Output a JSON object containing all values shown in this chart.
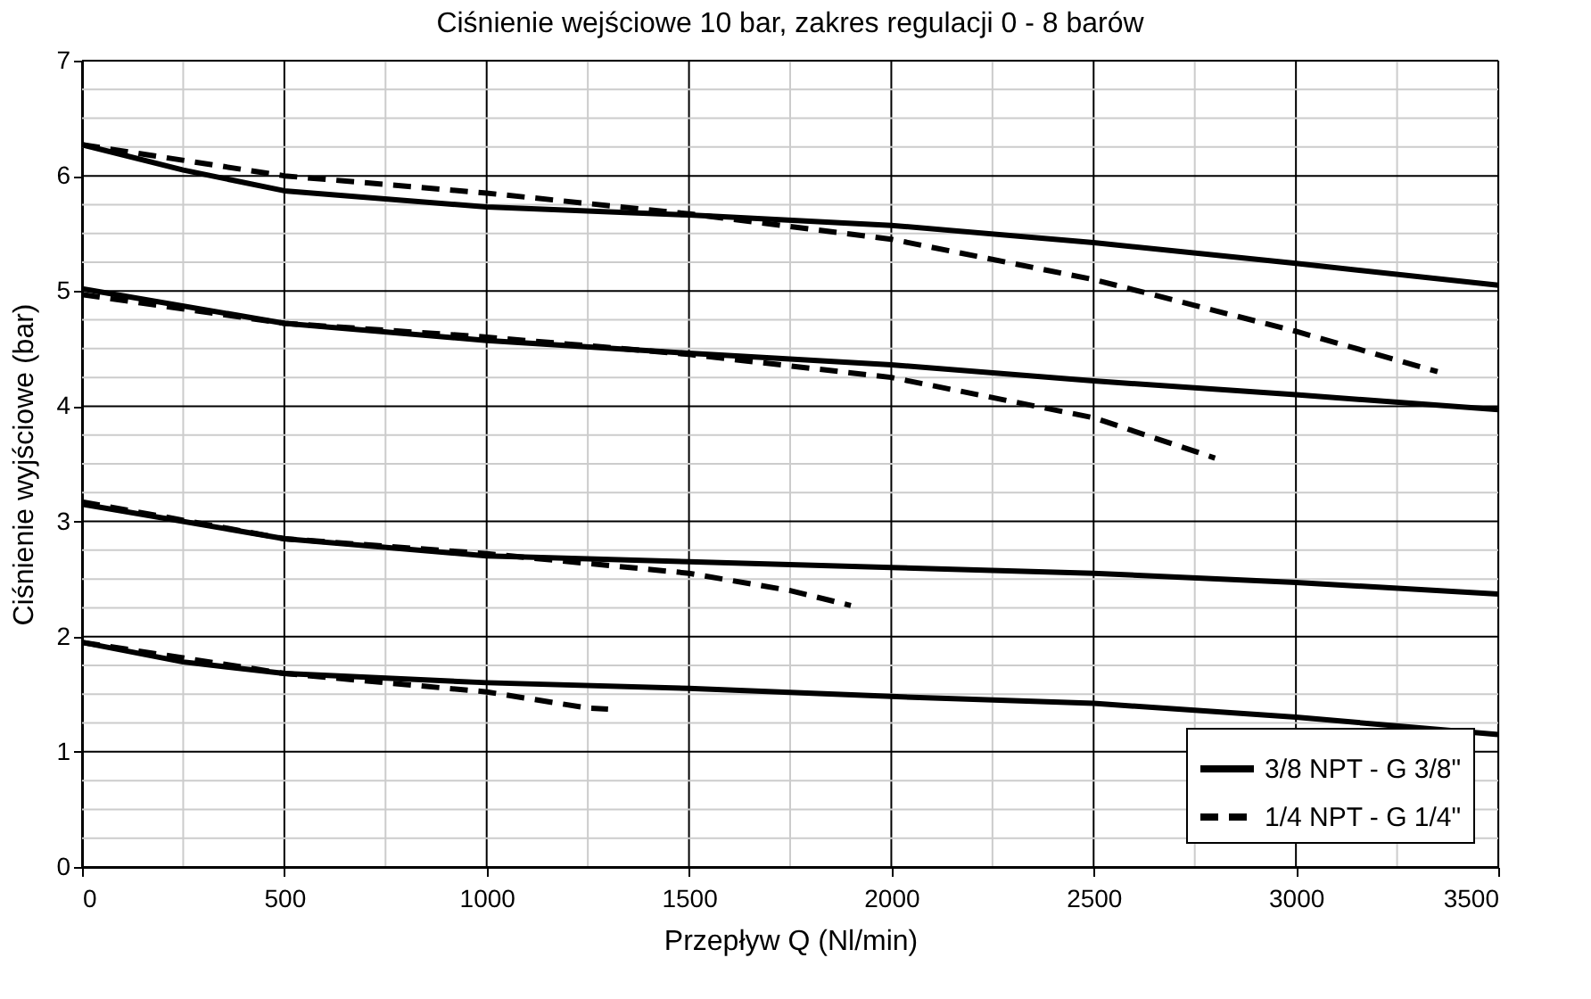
{
  "chart_data": {
    "type": "line",
    "title": "Ciśnienie wejściowe 10 bar, zakres regulacji 0 - 8 barów",
    "xlabel": "Przepływ Q (Nl/min)",
    "ylabel": "Ciśnienie wyjściowe (bar)",
    "xlim": [
      0,
      3500
    ],
    "ylim": [
      0,
      7
    ],
    "xticks": [
      0,
      {
        "value": 250,
        "label": null
      },
      500,
      {
        "value": 750,
        "label": null
      },
      1000,
      {
        "value": 1250,
        "label": null
      },
      1500,
      {
        "value": 1750,
        "label": null
      },
      2000,
      {
        "value": 2250,
        "label": null
      },
      2500,
      {
        "value": 2750,
        "label": null
      },
      3000,
      {
        "value": 3250,
        "label": null
      },
      3500
    ],
    "yticks": [
      0,
      {
        "value": 0.25,
        "label": null
      },
      {
        "value": 0.5,
        "label": null
      },
      {
        "value": 0.75,
        "label": null
      },
      1,
      {
        "value": 1.25,
        "label": null
      },
      {
        "value": 1.5,
        "label": null
      },
      {
        "value": 1.75,
        "label": null
      },
      2,
      {
        "value": 2.25,
        "label": null
      },
      {
        "value": 2.5,
        "label": null
      },
      {
        "value": 2.75,
        "label": null
      },
      3,
      {
        "value": 3.25,
        "label": null
      },
      {
        "value": 3.5,
        "label": null
      },
      {
        "value": 3.75,
        "label": null
      },
      4,
      {
        "value": 4.25,
        "label": null
      },
      {
        "value": 4.5,
        "label": null
      },
      {
        "value": 4.75,
        "label": null
      },
      5,
      {
        "value": 5.25,
        "label": null
      },
      {
        "value": 5.5,
        "label": null
      },
      {
        "value": 5.75,
        "label": null
      },
      6,
      {
        "value": 6.25,
        "label": null
      },
      {
        "value": 6.5,
        "label": null
      },
      {
        "value": 6.75,
        "label": null
      },
      7
    ],
    "grid": true,
    "legend": "bottom right",
    "marker": "none",
    "series": [
      {
        "name": "3/8 NPT - G 3/8\"",
        "color": "#000000",
        "line_style": "solid",
        "x": [
          0,
          250,
          500,
          1000,
          1500,
          2000,
          2500,
          3000,
          3500
        ],
        "values": [
          6.27,
          6.05,
          5.87,
          5.73,
          5.66,
          5.57,
          5.42,
          5.24,
          5.05
        ]
      },
      {
        "name": "1/4 NPT - G 1/4\"",
        "color": "#000000",
        "line_style": "dashed",
        "x": [
          0,
          500,
          1000,
          1500,
          2000,
          2500,
          3000,
          3350
        ],
        "values": [
          6.27,
          6.0,
          5.85,
          5.67,
          5.45,
          5.1,
          4.65,
          4.3
        ]
      },
      {
        "color": "#000000",
        "line_style": "solid",
        "x": [
          0,
          500,
          1000,
          1500,
          2000,
          2500,
          3000,
          3500
        ],
        "values": [
          5.02,
          4.72,
          4.57,
          4.46,
          4.36,
          4.22,
          4.1,
          3.97
        ]
      },
      {
        "color": "#000000",
        "line_style": "dashed",
        "x": [
          0,
          500,
          1000,
          1500,
          2000,
          2500,
          2800
        ],
        "values": [
          4.97,
          4.72,
          4.6,
          4.45,
          4.25,
          3.9,
          3.55
        ]
      },
      {
        "color": "#000000",
        "line_style": "solid",
        "x": [
          0,
          500,
          1000,
          1500,
          2000,
          2500,
          3000,
          3500
        ],
        "values": [
          3.15,
          2.85,
          2.7,
          2.65,
          2.6,
          2.55,
          2.47,
          2.37
        ]
      },
      {
        "color": "#000000",
        "line_style": "dashed",
        "x": [
          0,
          500,
          1000,
          1500,
          1750,
          1900
        ],
        "values": [
          3.17,
          2.85,
          2.72,
          2.55,
          2.4,
          2.27
        ]
      },
      {
        "color": "#000000",
        "line_style": "solid",
        "x": [
          0,
          250,
          500,
          1000,
          1500,
          2000,
          2500,
          3000,
          3500
        ],
        "values": [
          1.95,
          1.78,
          1.68,
          1.6,
          1.55,
          1.48,
          1.42,
          1.3,
          1.15
        ]
      },
      {
        "color": "#000000",
        "line_style": "dashed",
        "x": [
          0,
          500,
          1000,
          1250,
          1300
        ],
        "values": [
          1.95,
          1.68,
          1.52,
          1.38,
          1.37
        ]
      }
    ]
  }
}
